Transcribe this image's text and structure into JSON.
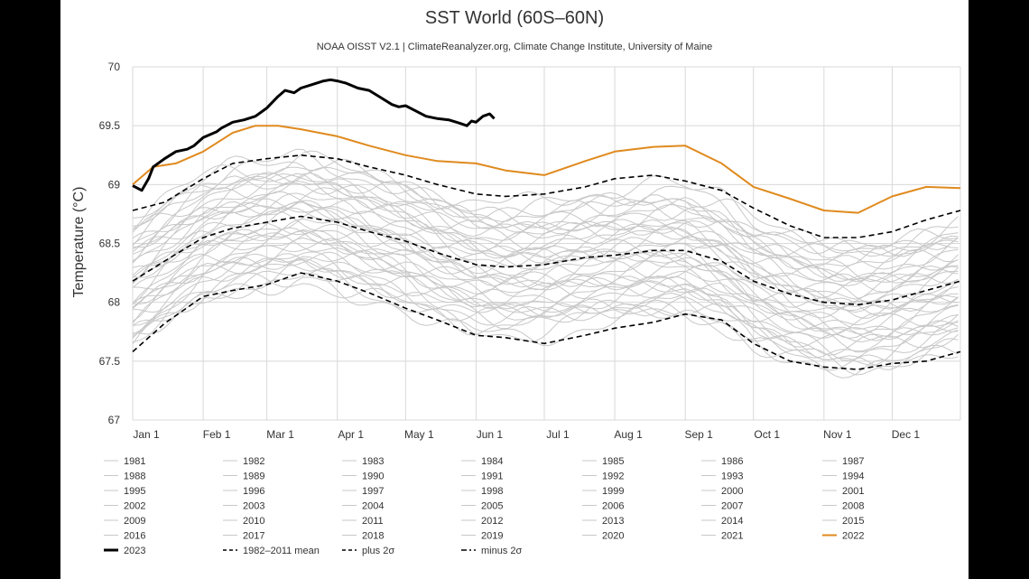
{
  "chart_data": {
    "type": "line",
    "title": "SST World (60S–60N)",
    "subtitle": "NOAA OISST V2.1 | ClimateReanalyzer.org, Climate Change Institute, University of Maine",
    "ylabel": "Temperature (°C)",
    "xlabel": "",
    "ylim": [
      67,
      70
    ],
    "xlim": [
      1,
      365
    ],
    "y_ticks": [
      67,
      67.5,
      68,
      68.5,
      69,
      69.5,
      70
    ],
    "x_ticks": [
      {
        "label": "Jan 1",
        "day": 1
      },
      {
        "label": "Feb 1",
        "day": 32
      },
      {
        "label": "Mar 1",
        "day": 60
      },
      {
        "label": "Apr 1",
        "day": 91
      },
      {
        "label": "May 1",
        "day": 121
      },
      {
        "label": "Jun 1",
        "day": 152
      },
      {
        "label": "Jul 1",
        "day": 182
      },
      {
        "label": "Aug 1",
        "day": 213
      },
      {
        "label": "Sep 1",
        "day": 244
      },
      {
        "label": "Oct 1",
        "day": 274
      },
      {
        "label": "Nov 1",
        "day": 305
      },
      {
        "label": "Dec 1",
        "day": 335
      }
    ],
    "grid": true,
    "legend_position": "bottom",
    "colors": {
      "past_years": "#c8c8c8",
      "year_2022": "#e08a1e",
      "year_2023": "#000000",
      "mean": "#000000",
      "sigma": "#000000",
      "grid": "#d8d8d8"
    },
    "past_years": [
      "1981",
      "1982",
      "1983",
      "1984",
      "1985",
      "1986",
      "1987",
      "1988",
      "1989",
      "1990",
      "1991",
      "1992",
      "1993",
      "1994",
      "1995",
      "1996",
      "1997",
      "1998",
      "1999",
      "2000",
      "2001",
      "2002",
      "2003",
      "2004",
      "2005",
      "2006",
      "2007",
      "2008",
      "2009",
      "2010",
      "2011",
      "2012",
      "2013",
      "2014",
      "2015",
      "2016",
      "2017",
      "2018",
      "2019",
      "2020",
      "2021"
    ],
    "series": [
      {
        "name": "2023",
        "style": "solid-thick",
        "x": [
          1,
          5,
          8,
          10,
          15,
          20,
          25,
          28,
          32,
          38,
          40,
          45,
          50,
          55,
          60,
          65,
          68,
          72,
          75,
          80,
          85,
          88,
          91,
          95,
          100,
          105,
          110,
          115,
          118,
          121,
          125,
          130,
          135,
          140,
          145,
          148,
          150,
          152,
          155,
          158,
          160
        ],
        "y": [
          68.99,
          68.95,
          69.05,
          69.15,
          69.22,
          69.28,
          69.3,
          69.33,
          69.4,
          69.45,
          69.48,
          69.53,
          69.55,
          69.58,
          69.65,
          69.75,
          69.8,
          69.78,
          69.82,
          69.85,
          69.88,
          69.89,
          69.88,
          69.86,
          69.82,
          69.8,
          69.74,
          69.68,
          69.66,
          69.67,
          69.63,
          69.58,
          69.56,
          69.55,
          69.52,
          69.5,
          69.54,
          69.53,
          69.58,
          69.6,
          69.56
        ]
      },
      {
        "name": "2022",
        "style": "solid-orange",
        "x": [
          1,
          10,
          20,
          32,
          45,
          55,
          65,
          75,
          91,
          105,
          121,
          135,
          152,
          165,
          182,
          200,
          213,
          230,
          244,
          260,
          274,
          290,
          305,
          320,
          335,
          350,
          365
        ],
        "y": [
          69.0,
          69.15,
          69.18,
          69.28,
          69.44,
          69.5,
          69.5,
          69.47,
          69.41,
          69.33,
          69.25,
          69.2,
          69.18,
          69.12,
          69.08,
          69.2,
          69.28,
          69.32,
          69.33,
          69.18,
          68.98,
          68.88,
          68.78,
          68.76,
          68.9,
          68.98,
          68.97
        ]
      },
      {
        "name": "1982–2011 mean",
        "style": "dashed",
        "x": [
          1,
          15,
          32,
          45,
          60,
          75,
          91,
          105,
          121,
          135,
          152,
          165,
          182,
          200,
          213,
          230,
          244,
          260,
          274,
          290,
          305,
          320,
          335,
          350,
          365
        ],
        "y": [
          68.18,
          68.35,
          68.55,
          68.63,
          68.68,
          68.73,
          68.68,
          68.6,
          68.52,
          68.42,
          68.32,
          68.3,
          68.32,
          68.38,
          68.4,
          68.44,
          68.44,
          68.35,
          68.18,
          68.07,
          68.0,
          67.98,
          68.02,
          68.1,
          68.18
        ]
      },
      {
        "name": "plus 2σ",
        "style": "dashed",
        "x": [
          1,
          15,
          32,
          45,
          60,
          75,
          91,
          105,
          121,
          135,
          152,
          165,
          182,
          200,
          213,
          230,
          244,
          260,
          274,
          290,
          305,
          320,
          335,
          350,
          365
        ],
        "y": [
          68.78,
          68.85,
          69.05,
          69.18,
          69.22,
          69.25,
          69.22,
          69.15,
          69.08,
          69.0,
          68.92,
          68.9,
          68.92,
          68.98,
          69.05,
          69.08,
          69.03,
          68.95,
          68.8,
          68.65,
          68.55,
          68.55,
          68.6,
          68.7,
          68.78
        ]
      },
      {
        "name": "minus 2σ",
        "style": "dashed",
        "x": [
          1,
          15,
          32,
          45,
          60,
          75,
          91,
          105,
          121,
          135,
          152,
          165,
          182,
          200,
          213,
          230,
          244,
          260,
          274,
          290,
          305,
          320,
          335,
          350,
          365
        ],
        "y": [
          67.58,
          67.82,
          68.05,
          68.1,
          68.15,
          68.25,
          68.18,
          68.08,
          67.95,
          67.85,
          67.72,
          67.7,
          67.65,
          67.72,
          67.78,
          67.83,
          67.9,
          67.85,
          67.65,
          67.5,
          67.45,
          67.43,
          67.48,
          67.5,
          67.58
        ]
      }
    ],
    "legend": [
      "1981",
      "1982",
      "1983",
      "1984",
      "1985",
      "1986",
      "1987",
      "1988",
      "1989",
      "1990",
      "1991",
      "1992",
      "1993",
      "1994",
      "1995",
      "1996",
      "1997",
      "1998",
      "1999",
      "2000",
      "2001",
      "2002",
      "2003",
      "2004",
      "2005",
      "2006",
      "2007",
      "2008",
      "2009",
      "2010",
      "2011",
      "2012",
      "2013",
      "2014",
      "2015",
      "2016",
      "2017",
      "2018",
      "2019",
      "2020",
      "2021",
      "2022",
      "2023",
      "1982–2011 mean",
      "plus 2σ",
      "minus 2σ"
    ]
  }
}
